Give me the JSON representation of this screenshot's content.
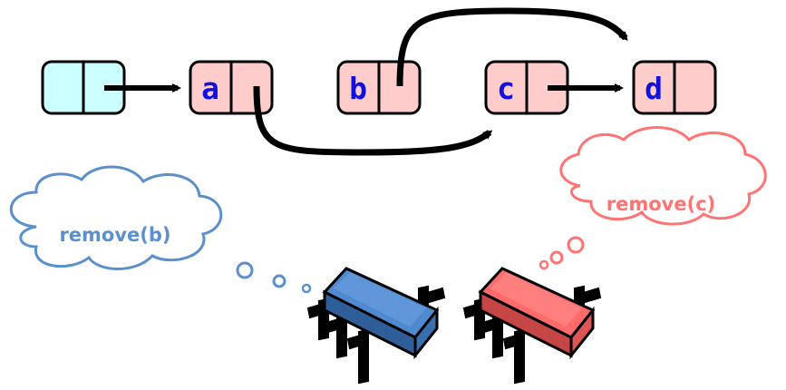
{
  "diagram": {
    "nodes": [
      {
        "id": "head",
        "label": ""
      },
      {
        "id": "a",
        "label": "a"
      },
      {
        "id": "b",
        "label": "b"
      },
      {
        "id": "c",
        "label": "c"
      },
      {
        "id": "d",
        "label": "d"
      }
    ],
    "links": [
      {
        "from": "head",
        "to": "a"
      },
      {
        "from": "a",
        "to": "c"
      },
      {
        "from": "b",
        "to": "d"
      },
      {
        "from": "c",
        "to": "d"
      }
    ],
    "threads": [
      {
        "id": "blue",
        "thought": "remove(b)",
        "color": "#5b8fce"
      },
      {
        "id": "red",
        "thought": "remove(c)",
        "color": "#ff7373"
      }
    ],
    "colors": {
      "head_fill": "#ccffff",
      "node_fill": "#ffcccc",
      "letter": "#1010e0",
      "arrow": "#000000",
      "blue_cpu": "#4f8ad0",
      "red_cpu": "#ff6a6a"
    }
  }
}
